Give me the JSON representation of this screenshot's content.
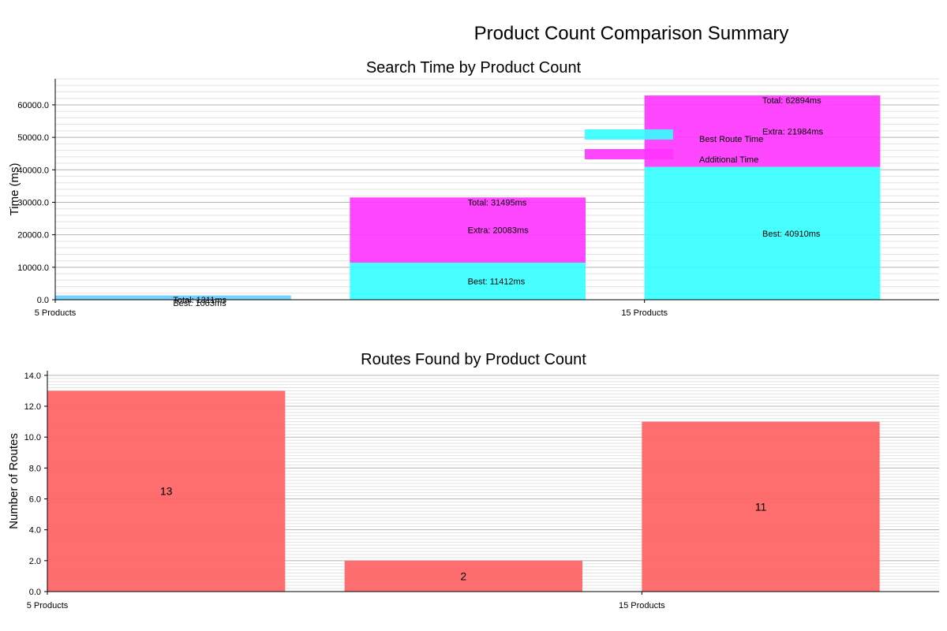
{
  "figure": {
    "suptitle": "Product Count Comparison Summary"
  },
  "colors": {
    "best": "#33ffff",
    "extra": "#ff33ff",
    "single": "#66ccff",
    "routes": "#ff6666",
    "grid": "#cfcfcf"
  },
  "chart_data": [
    {
      "id": "search-time",
      "type": "bar",
      "stacked": true,
      "title": "Search Time by Product Count",
      "xlabel": "",
      "ylabel": "Time (ms)",
      "categories": [
        "5 Products",
        "",
        "15 Products"
      ],
      "tick_labels": [
        "5 Products",
        "15 Products"
      ],
      "ylim": [
        0,
        68000
      ],
      "yticks": [
        0,
        10000,
        20000,
        30000,
        40000,
        50000,
        60000
      ],
      "ytick_labels": [
        "0.0",
        "10000.0",
        "20000.0",
        "30000.0",
        "40000.0",
        "50000.0",
        "60000.0"
      ],
      "grid": true,
      "legend_position": "upper-center",
      "series": [
        {
          "name": "Best Route Time",
          "values": [
            1063,
            11412,
            40910
          ]
        },
        {
          "name": "Additional Time",
          "values": [
            248,
            20083,
            21984
          ]
        }
      ],
      "labels": [
        {
          "best": "Best: 1063ms",
          "extra": "",
          "total": "Total: 1311ms"
        },
        {
          "best": "Best: 11412ms",
          "extra": "Extra: 20083ms",
          "total": "Total: 31495ms"
        },
        {
          "best": "Best: 40910ms",
          "extra": "Extra: 21984ms",
          "total": "Total: 62894ms"
        }
      ]
    },
    {
      "id": "routes-found",
      "type": "bar",
      "title": "Routes Found by Product Count",
      "xlabel": "",
      "ylabel": "Number of Routes",
      "categories": [
        "5 Products",
        "",
        "15 Products"
      ],
      "tick_labels": [
        "5 Products",
        "15 Products"
      ],
      "values": [
        13,
        2,
        11
      ],
      "value_labels": [
        "13",
        "2",
        "11"
      ],
      "ylim": [
        0,
        14.3
      ],
      "yticks": [
        0,
        2,
        4,
        6,
        8,
        10,
        12,
        14
      ],
      "ytick_labels": [
        "0.0",
        "2.0",
        "4.0",
        "6.0",
        "8.0",
        "10.0",
        "12.0",
        "14.0"
      ],
      "grid": true
    }
  ]
}
